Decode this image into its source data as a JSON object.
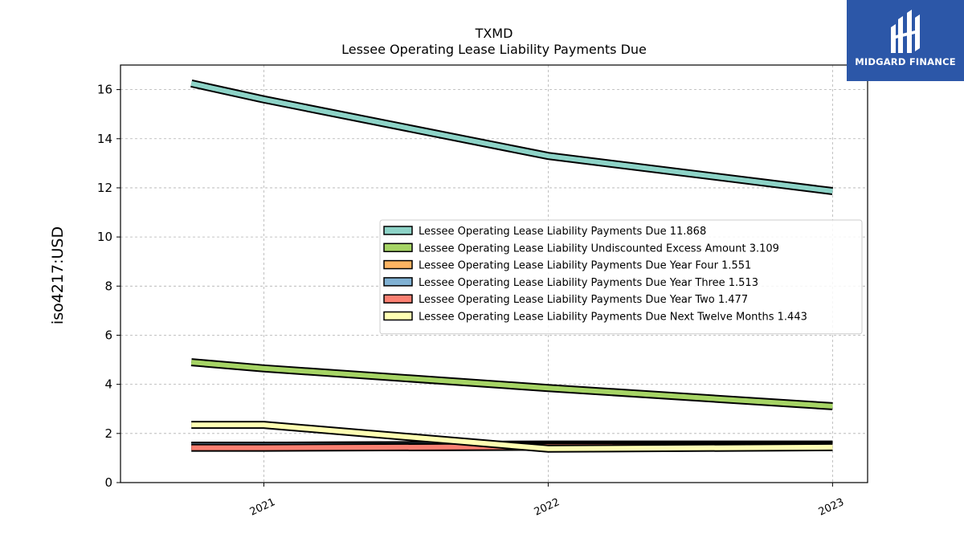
{
  "chart_data": {
    "type": "line",
    "title": "TXMD",
    "subtitle": "Lessee Operating Lease Liability Payments Due",
    "xlabel": "",
    "ylabel": "iso4217:USD",
    "x": [
      "2020-09-30",
      "2021-01-01",
      "2022-01-01",
      "2023-01-01"
    ],
    "x_ticks": [
      "2021",
      "2022",
      "2023"
    ],
    "ylim": [
      0,
      17
    ],
    "y_ticks": [
      0,
      2,
      4,
      6,
      8,
      10,
      12,
      14,
      16
    ],
    "grid": true,
    "legend_position": "center-right",
    "series": [
      {
        "name": "Lessee Operating Lease Liability Payments Due",
        "legend_label": "Lessee Operating Lease Liability Payments Due  11.868",
        "color": "#8dd3c7",
        "values": [
          16.25,
          15.6,
          13.3,
          11.868
        ]
      },
      {
        "name": "Lessee Operating Lease Liability Undiscounted Excess Amount",
        "legend_label": "Lessee Operating Lease Liability Undiscounted Excess Amount  3.109",
        "color": "#a6d465",
        "values": [
          4.9,
          4.65,
          3.85,
          3.109
        ]
      },
      {
        "name": "Lessee Operating Lease Liability Payments Due Year Four",
        "legend_label": "Lessee Operating Lease Liability Payments Due Year Four  1.551",
        "color": "#fdb462",
        "values": [
          1.5,
          1.5,
          1.55,
          1.551
        ]
      },
      {
        "name": "Lessee Operating Lease Liability Payments Due Year Three",
        "legend_label": "Lessee Operating Lease Liability Payments Due Year Three  1.513",
        "color": "#80b1d3",
        "values": [
          1.5,
          1.5,
          1.52,
          1.513
        ]
      },
      {
        "name": "Lessee Operating Lease Liability Payments Due Year Two",
        "legend_label": "Lessee Operating Lease Liability Payments Due Year Two  1.477",
        "color": "#fb8072",
        "values": [
          1.42,
          1.42,
          1.46,
          1.477
        ]
      },
      {
        "name": "Lessee Operating Lease Liability Payments Due Next Twelve Months",
        "legend_label": "Lessee Operating Lease Liability Payments Due Next Twelve Months  1.443",
        "color": "#ffffb3",
        "values": [
          2.35,
          2.35,
          1.38,
          1.443
        ]
      }
    ]
  },
  "logo": {
    "text": "MIDGARD FINANCE",
    "color": "#2c57a8"
  }
}
